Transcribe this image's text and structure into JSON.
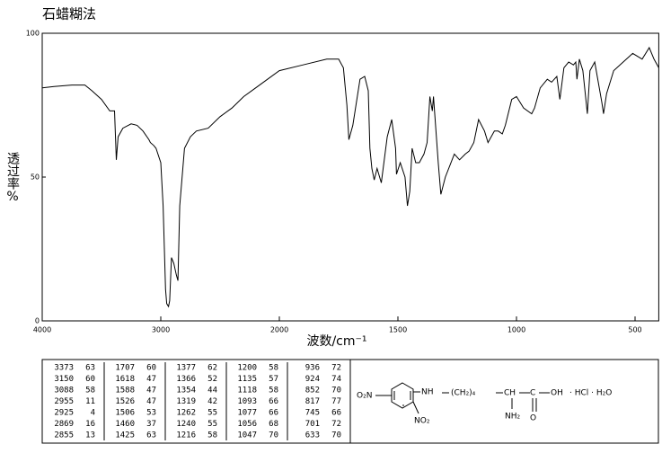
{
  "chart_data": {
    "type": "line",
    "title": "石蜡糊法",
    "ylabel": "透过率%",
    "xlabel": "波数/cm⁻¹",
    "color": "#000000",
    "x": [
      4000,
      3900,
      3750,
      3640,
      3580,
      3500,
      3430,
      3390,
      3375,
      3360,
      3320,
      3250,
      3200,
      3150,
      3100,
      3088,
      3060,
      3040,
      3000,
      2980,
      2960,
      2950,
      2935,
      2925,
      2910,
      2890,
      2869,
      2855,
      2840,
      2800,
      2750,
      2700,
      2600,
      2500,
      2400,
      2300,
      2200,
      2100,
      2000,
      1900,
      1800,
      1750,
      1730,
      1715,
      1707,
      1690,
      1660,
      1640,
      1625,
      1618,
      1610,
      1600,
      1588,
      1570,
      1545,
      1526,
      1510,
      1506,
      1490,
      1470,
      1460,
      1450,
      1440,
      1425,
      1410,
      1390,
      1377,
      1365,
      1355,
      1350,
      1330,
      1319,
      1300,
      1262,
      1240,
      1216,
      1200,
      1180,
      1160,
      1135,
      1120,
      1093,
      1077,
      1060,
      1047,
      1020,
      1000,
      970,
      936,
      924,
      900,
      870,
      852,
      830,
      817,
      800,
      780,
      760,
      750,
      745,
      735,
      720,
      701,
      690,
      670,
      640,
      633,
      620,
      590,
      550,
      510,
      470,
      440,
      420,
      400
    ],
    "values": [
      81,
      81.5,
      82,
      82,
      80,
      77,
      73,
      73,
      56,
      64,
      67,
      68.5,
      68,
      66,
      63,
      62,
      61,
      60,
      55,
      40,
      11,
      6,
      5,
      7,
      22,
      20,
      16,
      14,
      40,
      60,
      64,
      66,
      67,
      71,
      74,
      78,
      81,
      84,
      87,
      89,
      91,
      91,
      88,
      75,
      63,
      68,
      84,
      85,
      80,
      60,
      53,
      49,
      53,
      48,
      64,
      70,
      60,
      51,
      55,
      50,
      40,
      45,
      60,
      55,
      55,
      58,
      62,
      78,
      73,
      78,
      55,
      44,
      50,
      58,
      56,
      58,
      59,
      62,
      70,
      66,
      62,
      66,
      66,
      65,
      68,
      77,
      78,
      74,
      72,
      74,
      81,
      84,
      83,
      85,
      77,
      88,
      90,
      89,
      90,
      84,
      91,
      87,
      72,
      87,
      90,
      76,
      72,
      79,
      87,
      90,
      93,
      91,
      95,
      91,
      88
    ],
    "xlim": [
      4000,
      400
    ],
    "xticks": [
      4000,
      3000,
      2000,
      1500,
      1000,
      500
    ],
    "ylim": [
      0,
      100
    ],
    "yticks": [
      0,
      50,
      100
    ]
  },
  "peak_table": {
    "columns": [
      [
        [
          3373,
          63
        ],
        [
          3150,
          60
        ],
        [
          3088,
          58
        ],
        [
          2955,
          11
        ],
        [
          2925,
          4
        ],
        [
          2869,
          16
        ],
        [
          2855,
          13
        ]
      ],
      [
        [
          1707,
          60
        ],
        [
          1618,
          47
        ],
        [
          1588,
          47
        ],
        [
          1526,
          47
        ],
        [
          1506,
          53
        ],
        [
          1460,
          37
        ],
        [
          1425,
          63
        ]
      ],
      [
        [
          1377,
          62
        ],
        [
          1366,
          52
        ],
        [
          1354,
          44
        ],
        [
          1319,
          42
        ],
        [
          1262,
          55
        ],
        [
          1240,
          55
        ],
        [
          1216,
          58
        ]
      ],
      [
        [
          1200,
          58
        ],
        [
          1135,
          57
        ],
        [
          1118,
          58
        ],
        [
          1093,
          66
        ],
        [
          1077,
          66
        ],
        [
          1056,
          68
        ],
        [
          1047,
          70
        ]
      ],
      [
        [
          936,
          72
        ],
        [
          924,
          74
        ],
        [
          852,
          70
        ],
        [
          817,
          77
        ],
        [
          745,
          66
        ],
        [
          701,
          72
        ],
        [
          633,
          70
        ]
      ]
    ]
  },
  "structure": {
    "labels": [
      "O₂N",
      "NH",
      "(CH₂)₄",
      "CH",
      "C",
      "OH",
      "· HCl · H₂O",
      "NH₂",
      "O",
      "NO₂"
    ]
  }
}
